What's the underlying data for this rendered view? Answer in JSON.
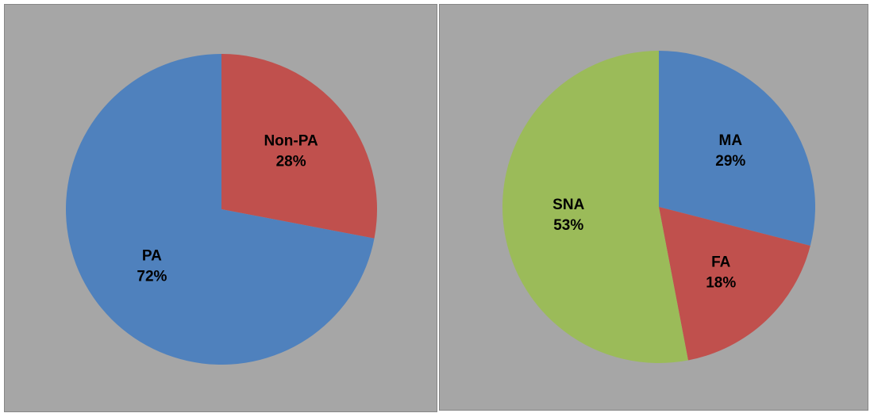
{
  "chart_data": [
    {
      "type": "pie",
      "categories": [
        "Non-PA",
        "PA"
      ],
      "values": [
        28,
        72
      ],
      "value_labels": [
        "28%",
        "72%"
      ],
      "colors": [
        "#c0504d",
        "#4f81bd"
      ]
    },
    {
      "type": "pie",
      "categories": [
        "MA",
        "FA",
        "SNA"
      ],
      "values": [
        29,
        18,
        53
      ],
      "value_labels": [
        "29%",
        "18%",
        "53%"
      ],
      "colors": [
        "#4f81bd",
        "#c0504d",
        "#9bbb59"
      ]
    }
  ]
}
